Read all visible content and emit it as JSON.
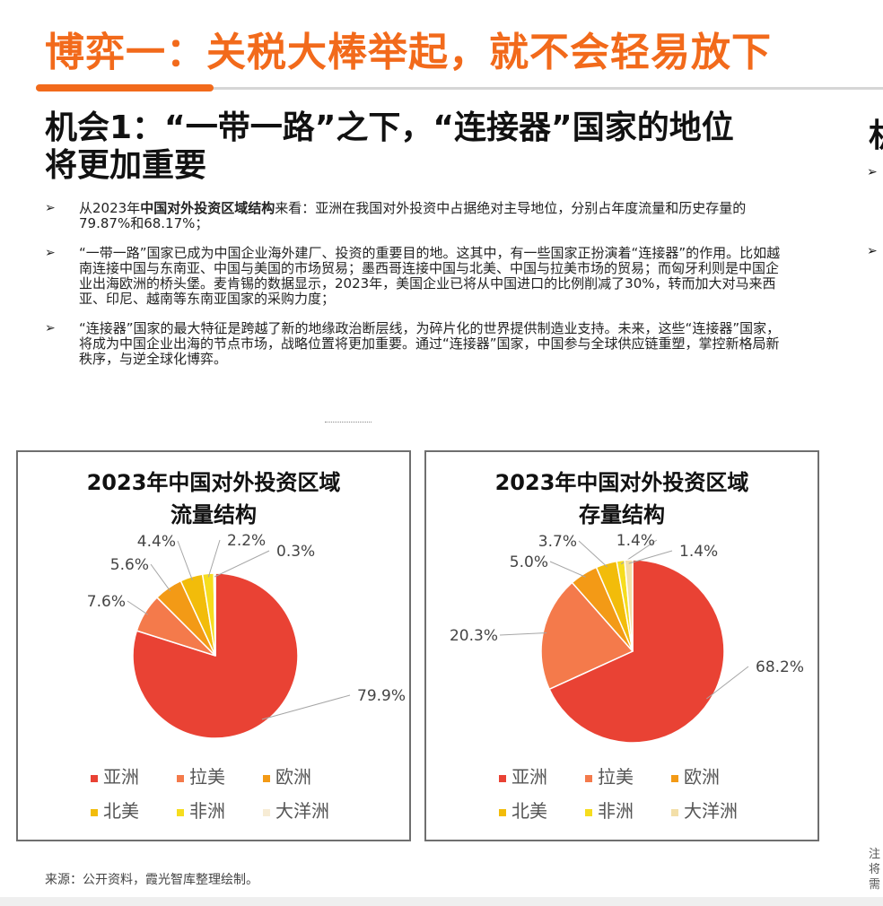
{
  "header": {
    "title": "博弈一：关税大棒举起，就不会轻易放下"
  },
  "section": {
    "title": "机会1：“一带一路”之下，“连接器”国家的地位将更加重要",
    "right_cut_title": "机",
    "right_cut_bullets": [
      "➢",
      "➢"
    ]
  },
  "bullets": [
    {
      "marker": "➢",
      "prefix": "从2023年",
      "bold": "中国对外投资区域结构",
      "text": "来看：亚洲在我国对外投资中占据绝对主导地位，分别占年度流量和历史存量的79.87%和68.17%；"
    },
    {
      "marker": "➢",
      "prefix": "",
      "bold": "",
      "text": "“一带一路”国家已成为中国企业海外建厂、投资的重要目的地。这其中，有一些国家正扮演着“连接器”的作用。比如越南连接中国与东南亚、中国与美国的市场贸易；墨西哥连接中国与北美、中国与拉美市场的贸易；而匈牙利则是中国企业出海欧洲的桥头堡。麦肯锡的数据显示，2023年，美国企业已将从中国进口的比例削减了30%，转而加大对马来西亚、印尼、越南等东南亚国家的采购力度；"
    },
    {
      "marker": "➢",
      "prefix": "",
      "bold": "",
      "text": "“连接器”国家的最大特征是跨越了新的地缘政治断层线，为碎片化的世界提供制造业支持。未来，这些“连接器”国家，将成为中国企业出海的节点市场，战略位置将更加重要。通过“连接器”国家，中国参与全球供应链重塑，掌控新格局新秩序，与逆全球化博弈。"
    }
  ],
  "chart_data": [
    {
      "type": "pie",
      "title_lines": [
        "2023年中国对外投资区域",
        "流量结构"
      ],
      "categories": [
        "亚洲",
        "拉美",
        "欧洲",
        "北美",
        "非洲",
        "大洋洲"
      ],
      "values": [
        79.9,
        7.6,
        5.6,
        4.4,
        2.2,
        0.3
      ],
      "labels": [
        "79.9%",
        "7.6%",
        "5.6%",
        "4.4%",
        "2.2%",
        "0.3%"
      ],
      "colors": [
        "#e94234",
        "#f47a4b",
        "#f39a16",
        "#f2bc0a",
        "#f6dd1e",
        "#f7ecd5"
      ],
      "legend_position": "bottom"
    },
    {
      "type": "pie",
      "title_lines": [
        "2023年中国对外投资区域",
        "存量结构"
      ],
      "categories": [
        "亚洲",
        "拉美",
        "欧洲",
        "北美",
        "非洲",
        "大洋洲"
      ],
      "values": [
        68.2,
        20.3,
        5.0,
        3.7,
        1.4,
        1.4
      ],
      "labels": [
        "68.2%",
        "20.3%",
        "5.0%",
        "3.7%",
        "1.4%",
        "1.4%"
      ],
      "colors": [
        "#e94234",
        "#f47a4b",
        "#f39a16",
        "#f2bc0a",
        "#f6dd1e",
        "#f3dfa8"
      ],
      "legend_position": "bottom"
    }
  ],
  "footer": {
    "source": "来源：公开资料，霞光智库整理绘制。",
    "note": "注将需"
  }
}
